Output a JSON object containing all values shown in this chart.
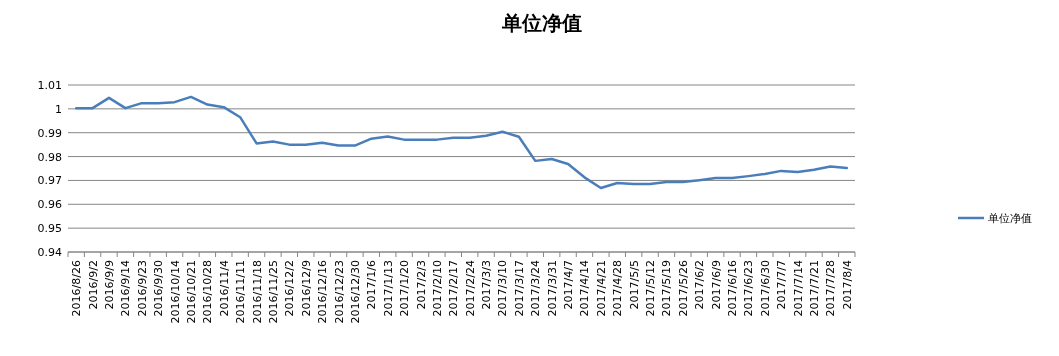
{
  "chart_data": {
    "type": "line",
    "title": "单位净值",
    "categories": [
      "2016/8/26",
      "2016/9/2",
      "2016/9/9",
      "2016/9/14",
      "2016/9/23",
      "2016/9/30",
      "2016/10/14",
      "2016/10/21",
      "2016/10/28",
      "2016/11/4",
      "2016/11/11",
      "2016/11/18",
      "2016/11/25",
      "2016/12/2",
      "2016/12/9",
      "2016/12/16",
      "2016/12/23",
      "2016/12/30",
      "2017/1/6",
      "2017/1/13",
      "2017/1/20",
      "2017/2/3",
      "2017/2/10",
      "2017/2/17",
      "2017/2/24",
      "2017/3/3",
      "2017/3/10",
      "2017/3/17",
      "2017/3/24",
      "2017/3/31",
      "2017/4/7",
      "2017/4/14",
      "2017/4/21",
      "2017/4/28",
      "2017/5/5",
      "2017/5/12",
      "2017/5/19",
      "2017/5/26",
      "2017/6/2",
      "2017/6/9",
      "2017/6/16",
      "2017/6/23",
      "2017/6/30",
      "2017/7/7",
      "2017/7/14",
      "2017/7/21",
      "2017/7/28",
      "2017/8/4"
    ],
    "series": [
      {
        "name": "单位净值",
        "color": "#4a7ebb",
        "values": [
          1.0003,
          1.0003,
          1.0046,
          1.0003,
          1.0024,
          1.0024,
          1.0028,
          1.005,
          1.0018,
          1.0007,
          0.9965,
          0.9855,
          0.9863,
          0.985,
          0.985,
          0.9858,
          0.9846,
          0.9846,
          0.9875,
          0.9884,
          0.9871,
          0.9871,
          0.9871,
          0.9879,
          0.9879,
          0.9887,
          0.9904,
          0.9883,
          0.9782,
          0.979,
          0.9769,
          0.9713,
          0.9668,
          0.9689,
          0.9685,
          0.9685,
          0.9693,
          0.9693,
          0.9701,
          0.971,
          0.971,
          0.9718,
          0.9727,
          0.974,
          0.9735,
          0.9745,
          0.9758,
          0.9752
        ]
      }
    ],
    "ylim": [
      0.94,
      1.01
    ],
    "yticks": [
      0.94,
      0.95,
      0.96,
      0.97,
      0.98,
      0.99,
      1,
      1.01
    ],
    "grid": "y",
    "legend": "right",
    "marker": "none",
    "line_style": "solid"
  }
}
